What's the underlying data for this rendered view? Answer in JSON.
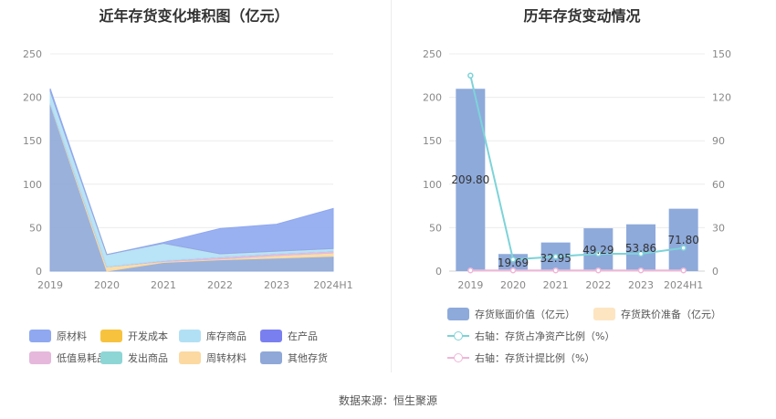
{
  "left_title": "近年存货变化堆积图（亿元）",
  "right_title": "历年存货变动情况",
  "source": "数据来源：恒生聚源",
  "colors": {
    "原材料": "#8fa8f0",
    "开发成本": "#f7c33f",
    "库存商品": "#b1e0f5",
    "在产品": "#7a7ff0",
    "低值易耗品": "#e6b8dc",
    "发出商品": "#8ed6d6",
    "周转材料": "#fbd9a0",
    "其他存货": "#8fa8d8",
    "bar_book": "#8eaadb",
    "bar_impair": "#fde5c2",
    "line_ratio": "#7dd3d8",
    "line_impair": "#f0b6d8"
  },
  "chart_data": [
    {
      "type": "area",
      "stacked": true,
      "categories": [
        "2019",
        "2020",
        "2021",
        "2022",
        "2023",
        "2024H1"
      ],
      "ylim": [
        0,
        250
      ],
      "yticks": [
        0,
        50,
        100,
        150,
        200,
        250
      ],
      "grid": true,
      "legend_position": "bottom",
      "series": [
        {
          "name": "原材料",
          "values": [
            3,
            0,
            1,
            29,
            31,
            46
          ]
        },
        {
          "name": "开发成本",
          "values": [
            0,
            0,
            0,
            0,
            0,
            0
          ]
        },
        {
          "name": "库存商品",
          "values": [
            14,
            14,
            20,
            4,
            3,
            3
          ]
        },
        {
          "name": "在产品",
          "values": [
            0,
            0,
            0,
            0,
            0,
            0
          ]
        },
        {
          "name": "低值易耗品",
          "values": [
            0,
            0,
            1,
            2,
            2,
            2
          ]
        },
        {
          "name": "发出商品",
          "values": [
            0,
            0,
            0,
            0,
            0,
            0
          ]
        },
        {
          "name": "周转材料",
          "values": [
            1,
            5,
            1,
            1,
            3,
            4
          ]
        },
        {
          "name": "其他存货",
          "values": [
            192,
            0,
            10,
            13,
            15,
            17
          ]
        }
      ]
    },
    {
      "type": "bar",
      "categories": [
        "2019",
        "2020",
        "2021",
        "2022",
        "2023",
        "2024H1"
      ],
      "ylim": [
        0,
        250
      ],
      "yticks": [
        0,
        50,
        100,
        150,
        200,
        250
      ],
      "y2lim": [
        0,
        150
      ],
      "y2ticks": [
        0,
        30,
        60,
        90,
        120,
        150
      ],
      "grid": true,
      "legend_position": "bottom",
      "series": [
        {
          "name": "存货账面价值（亿元）",
          "type": "bar",
          "axis": "left",
          "values": [
            209.8,
            19.69,
            32.95,
            49.29,
            53.86,
            71.8
          ],
          "labels": [
            "209.80",
            "19.69",
            "32.95",
            "49.29",
            "53.86",
            "71.80"
          ]
        },
        {
          "name": "存货跌价准备（亿元）",
          "type": "bar",
          "axis": "left",
          "values": [
            0,
            0,
            0,
            0,
            0,
            0
          ]
        },
        {
          "name": "右轴：存货占净资产比例（%）",
          "type": "line",
          "axis": "right",
          "values": [
            135,
            8,
            10,
            12,
            12,
            16
          ]
        },
        {
          "name": "右轴：存货计提比例（%）",
          "type": "line",
          "axis": "right",
          "values": [
            0.5,
            0.5,
            0.5,
            0.5,
            0.5,
            0.5
          ]
        }
      ]
    }
  ]
}
